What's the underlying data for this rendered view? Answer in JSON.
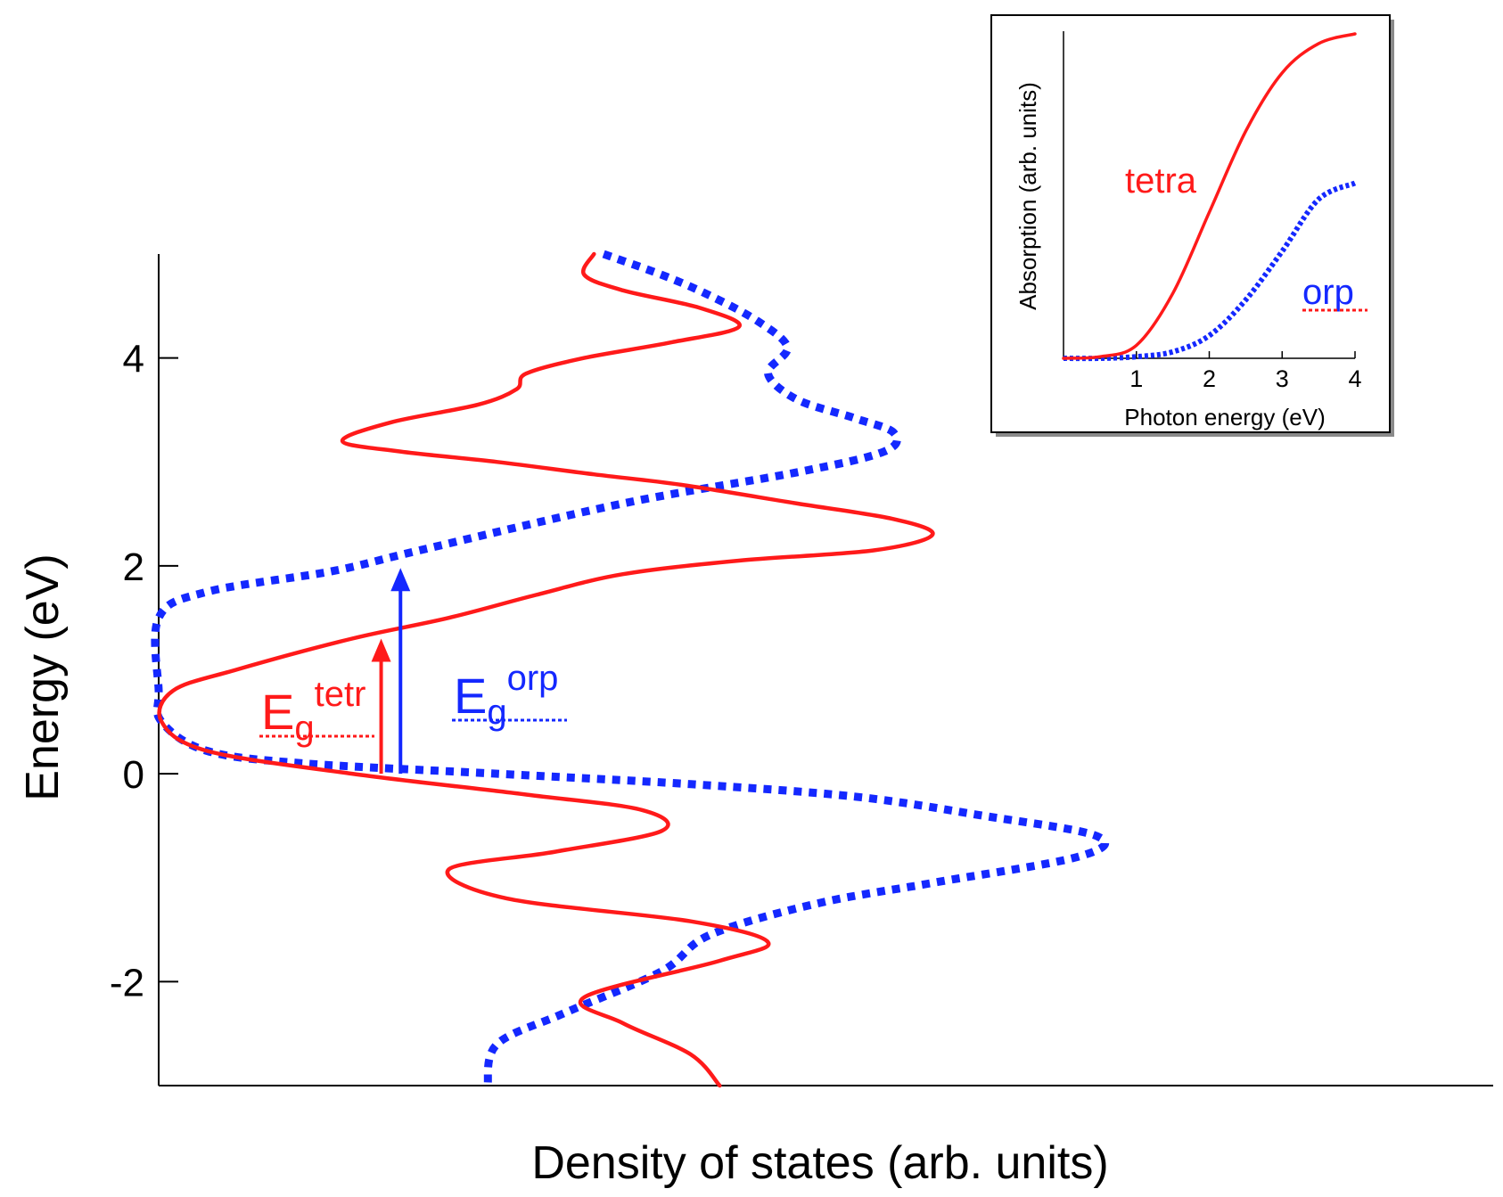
{
  "colors": {
    "tetra": "#ff1a1a",
    "orp": "#1428ff",
    "axis": "#000000"
  },
  "chart_data": [
    {
      "type": "line",
      "orientation": "energy-vertical",
      "title": "",
      "xlabel": "Density of states (arb. units)",
      "ylabel": "Energy (eV)",
      "ylim": [
        -3,
        5
      ],
      "yticks": [
        "-2",
        "0",
        "2",
        "4"
      ],
      "yticks_values": [
        -2,
        0,
        2,
        4
      ],
      "grid": false,
      "series": [
        {
          "key": "tetra",
          "style": "solid",
          "points": [
            [
              0.45,
              5.0
            ],
            [
              0.44,
              4.8
            ],
            [
              0.48,
              4.65
            ],
            [
              0.56,
              4.48
            ],
            [
              0.6,
              4.3
            ],
            [
              0.53,
              4.15
            ],
            [
              0.44,
              4.0
            ],
            [
              0.38,
              3.85
            ],
            [
              0.37,
              3.7
            ],
            [
              0.33,
              3.55
            ],
            [
              0.24,
              3.38
            ],
            [
              0.19,
              3.2
            ],
            [
              0.25,
              3.1
            ],
            [
              0.35,
              3.0
            ],
            [
              0.45,
              2.88
            ],
            [
              0.54,
              2.78
            ],
            [
              0.66,
              2.6
            ],
            [
              0.76,
              2.45
            ],
            [
              0.8,
              2.3
            ],
            [
              0.74,
              2.15
            ],
            [
              0.6,
              2.05
            ],
            [
              0.48,
              1.92
            ],
            [
              0.39,
              1.72
            ],
            [
              0.3,
              1.5
            ],
            [
              0.2,
              1.3
            ],
            [
              0.08,
              1.0
            ],
            [
              0.015,
              0.8
            ],
            [
              0.003,
              0.5
            ],
            [
              0.05,
              0.22
            ],
            [
              0.2,
              0.0
            ],
            [
              0.38,
              -0.2
            ],
            [
              0.5,
              -0.35
            ],
            [
              0.52,
              -0.55
            ],
            [
              0.41,
              -0.75
            ],
            [
              0.3,
              -0.92
            ],
            [
              0.36,
              -1.2
            ],
            [
              0.55,
              -1.42
            ],
            [
              0.63,
              -1.62
            ],
            [
              0.58,
              -1.8
            ],
            [
              0.44,
              -2.15
            ],
            [
              0.48,
              -2.4
            ],
            [
              0.55,
              -2.7
            ],
            [
              0.58,
              -3.0
            ]
          ]
        },
        {
          "key": "orp",
          "style": "dotted",
          "points": [
            [
              0.46,
              5.0
            ],
            [
              0.52,
              4.8
            ],
            [
              0.57,
              4.6
            ],
            [
              0.62,
              4.35
            ],
            [
              0.65,
              4.1
            ],
            [
              0.63,
              3.85
            ],
            [
              0.66,
              3.6
            ],
            [
              0.72,
              3.42
            ],
            [
              0.76,
              3.28
            ],
            [
              0.75,
              3.1
            ],
            [
              0.66,
              2.9
            ],
            [
              0.48,
              2.6
            ],
            [
              0.27,
              2.15
            ],
            [
              0.18,
              1.95
            ],
            [
              0.05,
              1.75
            ],
            [
              0.0,
              1.5
            ],
            [
              0.0,
              0.8
            ],
            [
              0.003,
              0.5
            ],
            [
              0.05,
              0.22
            ],
            [
              0.15,
              0.1
            ],
            [
              0.35,
              0.0
            ],
            [
              0.55,
              -0.1
            ],
            [
              0.72,
              -0.22
            ],
            [
              0.85,
              -0.4
            ],
            [
              0.97,
              -0.6
            ],
            [
              0.95,
              -0.8
            ],
            [
              0.8,
              -1.05
            ],
            [
              0.68,
              -1.25
            ],
            [
              0.57,
              -1.55
            ],
            [
              0.52,
              -1.9
            ],
            [
              0.42,
              -2.3
            ],
            [
              0.35,
              -2.6
            ],
            [
              0.34,
              -3.0
            ]
          ]
        }
      ],
      "annotations": [
        {
          "key": "tetr",
          "label": "E",
          "sub": "g",
          "sup": "tetr",
          "arrow_x": 0.23,
          "arrow_from": 0.0,
          "arrow_to": 1.3
        },
        {
          "key": "orp",
          "label": "E",
          "sub": "g",
          "sup": "orp",
          "arrow_x": 0.25,
          "arrow_from": 0.0,
          "arrow_to": 1.98
        }
      ]
    },
    {
      "type": "line",
      "role": "inset",
      "title": "",
      "xlabel": "Photon energy (eV)",
      "ylabel": "Absorption (arb. units)",
      "xlim": [
        0,
        4
      ],
      "xticks": [
        "1",
        "2",
        "3",
        "4"
      ],
      "xticks_values": [
        1,
        2,
        3,
        4
      ],
      "grid": false,
      "series": [
        {
          "key": "tetra",
          "name": "tetra",
          "style": "solid",
          "points": [
            [
              0,
              0.0
            ],
            [
              0.5,
              0.005
            ],
            [
              1.0,
              0.04
            ],
            [
              1.5,
              0.2
            ],
            [
              2.0,
              0.45
            ],
            [
              2.5,
              0.7
            ],
            [
              3.0,
              0.88
            ],
            [
              3.5,
              0.97
            ],
            [
              4.0,
              1.0
            ]
          ]
        },
        {
          "key": "orp",
          "name": "orp",
          "style": "dotted",
          "points": [
            [
              0,
              0.0
            ],
            [
              0.5,
              0.0
            ],
            [
              1.0,
              0.005
            ],
            [
              1.5,
              0.02
            ],
            [
              2.0,
              0.07
            ],
            [
              2.5,
              0.18
            ],
            [
              3.0,
              0.33
            ],
            [
              3.5,
              0.49
            ],
            [
              4.0,
              0.54
            ]
          ]
        }
      ]
    }
  ]
}
